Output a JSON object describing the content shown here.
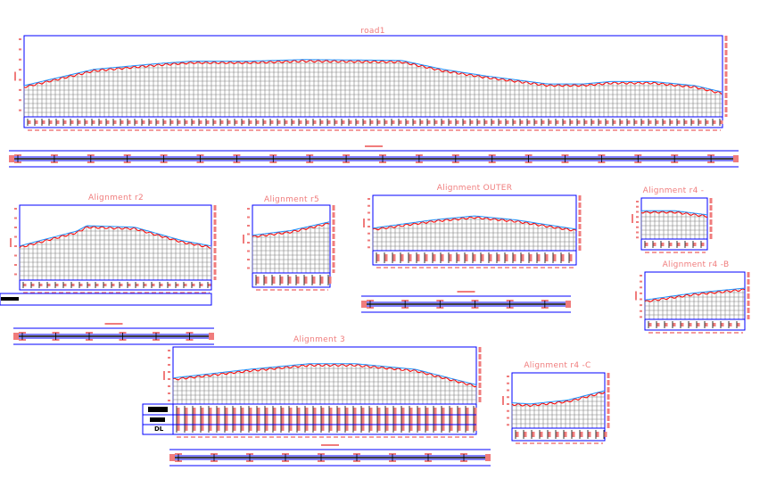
{
  "drawing": {
    "profiles": [
      {
        "id": "road1",
        "title": "road1"
      },
      {
        "id": "r2",
        "title": "Alignment r2"
      },
      {
        "id": "r5",
        "title": "Alignment r5"
      },
      {
        "id": "outer",
        "title": "Alignment OUTER"
      },
      {
        "id": "r4a",
        "title": "Alignment r4 -"
      },
      {
        "id": "r4b",
        "title": "Alignment r4 -B"
      },
      {
        "id": "al3",
        "title": "Alignment 3"
      },
      {
        "id": "r4c",
        "title": "Alignment r4 -C"
      }
    ],
    "band_label_dl": "DL",
    "colors": {
      "frame": "#0000ff",
      "grid": "#808080",
      "existing_ground": "#ff0000",
      "design_level": "#1e90ff",
      "annotation": "#f07c7c",
      "plan_line": "#000000"
    }
  }
}
